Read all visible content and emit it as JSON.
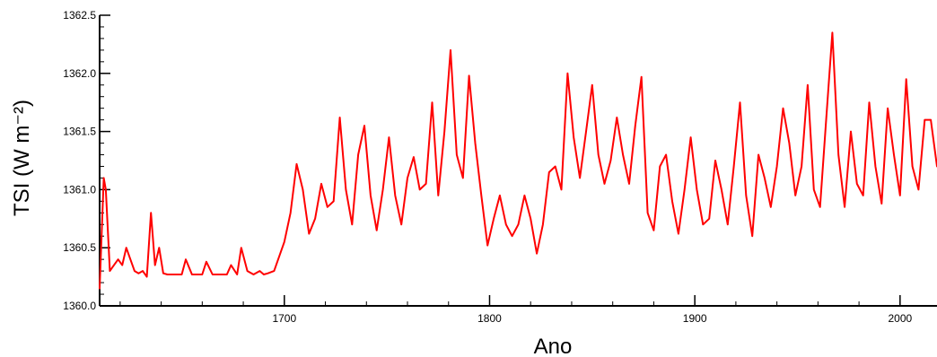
{
  "chart_data": {
    "type": "line",
    "title": "",
    "xlabel": "Ano",
    "ylabel": "TSI (W m⁻²)",
    "xlim": [
      1610,
      2018
    ],
    "ylim": [
      1360.0,
      1362.5
    ],
    "x_ticks": [
      1700,
      1800,
      1900,
      2000
    ],
    "y_ticks": [
      1360.0,
      1360.5,
      1361.0,
      1361.5,
      1362.0,
      1362.5
    ],
    "y_tick_labels": [
      "1360.0",
      "1360.5",
      "1361.0",
      "1361.5",
      "1362.0",
      "1362.5"
    ],
    "grid": false,
    "legend": "none",
    "line_color": "#ff0000",
    "series": [
      {
        "x": [
          1610,
          1612,
          1613,
          1615,
          1617,
          1619,
          1621,
          1623,
          1625,
          1627,
          1629,
          1631,
          1633,
          1635,
          1637,
          1639,
          1641,
          1643,
          1645,
          1650,
          1652,
          1655,
          1660,
          1662,
          1665,
          1672,
          1674,
          1677,
          1679,
          1682,
          1685,
          1688,
          1690,
          1692,
          1695,
          1700,
          1703,
          1706,
          1709,
          1712,
          1715,
          1718,
          1721,
          1724,
          1727,
          1730,
          1733,
          1736,
          1739,
          1742,
          1745,
          1748,
          1751,
          1754,
          1757,
          1760,
          1763,
          1766,
          1769,
          1772,
          1775,
          1778,
          1781,
          1784,
          1787,
          1790,
          1793,
          1796,
          1799,
          1802,
          1805,
          1808,
          1811,
          1814,
          1817,
          1820,
          1823,
          1826,
          1829,
          1832,
          1835,
          1838,
          1841,
          1844,
          1847,
          1850,
          1853,
          1856,
          1859,
          1862,
          1865,
          1868,
          1871,
          1874,
          1877,
          1880,
          1883,
          1886,
          1889,
          1892,
          1895,
          1898,
          1901,
          1904,
          1907,
          1910,
          1913,
          1916,
          1919,
          1922,
          1925,
          1928,
          1931,
          1934,
          1937,
          1940,
          1943,
          1946,
          1949,
          1952,
          1955,
          1958,
          1961,
          1964,
          1967,
          1970,
          1973,
          1976,
          1979,
          1982,
          1985,
          1988,
          1991,
          1994,
          1997,
          2000,
          2003,
          2006,
          2009,
          2012,
          2015,
          2018
        ],
        "y": [
          1360.15,
          1361.1,
          1361.0,
          1360.3,
          1360.35,
          1360.4,
          1360.35,
          1360.5,
          1360.4,
          1360.3,
          1360.28,
          1360.3,
          1360.25,
          1360.8,
          1360.35,
          1360.5,
          1360.28,
          1360.27,
          1360.27,
          1360.27,
          1360.4,
          1360.27,
          1360.27,
          1360.38,
          1360.27,
          1360.27,
          1360.35,
          1360.27,
          1360.5,
          1360.3,
          1360.27,
          1360.3,
          1360.27,
          1360.28,
          1360.3,
          1360.55,
          1360.8,
          1361.22,
          1361.0,
          1360.62,
          1360.75,
          1361.05,
          1360.85,
          1360.9,
          1361.62,
          1361.0,
          1360.7,
          1361.3,
          1361.55,
          1360.95,
          1360.65,
          1361.0,
          1361.45,
          1360.95,
          1360.7,
          1361.1,
          1361.28,
          1361.0,
          1361.05,
          1361.75,
          1360.95,
          1361.5,
          1362.2,
          1361.3,
          1361.1,
          1361.98,
          1361.4,
          1360.95,
          1360.52,
          1360.75,
          1360.95,
          1360.7,
          1360.6,
          1360.7,
          1360.95,
          1360.75,
          1360.45,
          1360.7,
          1361.15,
          1361.2,
          1361.0,
          1362.0,
          1361.45,
          1361.1,
          1361.5,
          1361.9,
          1361.3,
          1361.05,
          1361.25,
          1361.62,
          1361.3,
          1361.05,
          1361.55,
          1361.97,
          1360.8,
          1360.65,
          1361.2,
          1361.3,
          1360.9,
          1360.62,
          1361.0,
          1361.45,
          1361.0,
          1360.7,
          1360.75,
          1361.25,
          1361.0,
          1360.7,
          1361.2,
          1361.75,
          1360.95,
          1360.6,
          1361.3,
          1361.1,
          1360.85,
          1361.2,
          1361.7,
          1361.4,
          1360.95,
          1361.2,
          1361.9,
          1361.0,
          1360.85,
          1361.6,
          1362.35,
          1361.3,
          1360.85,
          1361.5,
          1361.05,
          1360.95,
          1361.75,
          1361.2,
          1360.88,
          1361.7,
          1361.3,
          1360.95,
          1361.95,
          1361.2,
          1361.0,
          1361.6,
          1361.6,
          1361.2
        ]
      }
    ]
  }
}
